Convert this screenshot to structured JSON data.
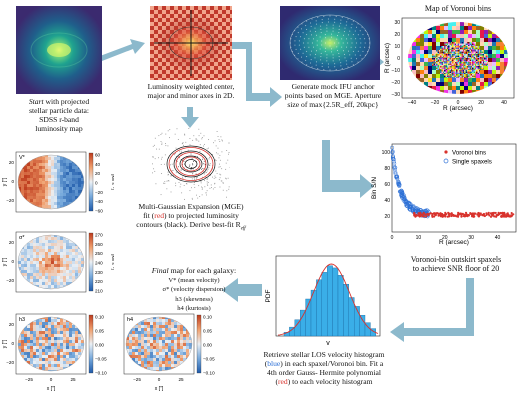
{
  "panels": {
    "sdss": {
      "caption_lines": [
        "Start with projected",
        "stellar particle data:",
        "SDSS r-band",
        "luminosity map"
      ],
      "start_word": "Start"
    },
    "luminosity": {
      "caption_lines": [
        "Luminosity weighted center,",
        "major and minor axes in 2D."
      ]
    },
    "mge": {
      "caption_title": "Multi-Gaussian Expansion (MGE)",
      "caption_fit_pre": "fit (",
      "caption_fit_red": "red",
      "caption_fit_post": ") to projected luminosity",
      "caption_line3": "contours (black). Derive best-fit R",
      "caption_sub": "eff"
    },
    "anchor": {
      "caption_lines": [
        "Generate mock IFU anchor",
        "points based on MGE. Aperture",
        "size of max{2.5R_eff, 20kpc}"
      ]
    },
    "voronoi_map": {
      "title": "Map of Voronoi bins",
      "xlabel": "R (arcsec)",
      "ylabel": "R (arcsec)",
      "xticks": [
        "−40",
        "−20",
        "0",
        "20",
        "40"
      ],
      "yticks": [
        "30",
        "20",
        "10",
        "0",
        "−10",
        "−20",
        "−30"
      ]
    },
    "snr_plot": {
      "ylabel": "Bin S/N",
      "xlabel": "R (arcsec)",
      "xticks": [
        "0",
        "10",
        "20",
        "30",
        "40"
      ],
      "yticks": [
        "100",
        "80",
        "60",
        "40",
        "20"
      ],
      "legend": [
        "Voronoi bins",
        "Single spaxels"
      ],
      "caption_lines": [
        "Voronoi-bin outskirt spaxels",
        "to achieve SNR floor of 20"
      ]
    },
    "histogram": {
      "ylabel": "PDF",
      "xlabel": "v",
      "caption_line1": "Retrieve stellar LOS velocity histogram",
      "caption_line2_pre": "(",
      "caption_line2_blue": "blue",
      "caption_line2_post": ") in each spaxel/Voronoi bin. Fit a",
      "caption_line3": "4th order Gauss- Hermite polynomial",
      "caption_line4_pre": "(",
      "caption_line4_red": "red",
      "caption_line4_post": ") to each velocity histogram"
    },
    "final": {
      "title_word": "Final",
      "title_rest": " map for each galaxy:",
      "items": [
        "V* (mean velocity)",
        "σ* (velocity dispersion)",
        "h3 (skewness)",
        "h4 (kurtosis)"
      ]
    }
  },
  "maps": [
    {
      "label": "V*",
      "unit": "[km s⁻¹]",
      "cbar": [
        "60",
        "40",
        "20",
        "0",
        "−20",
        "−40",
        "−60"
      ],
      "yticks": [
        "20",
        "0",
        "−20"
      ],
      "xticks": []
    },
    {
      "label": "σ*",
      "unit": "[km s⁻¹]",
      "cbar": [
        "270",
        "260",
        "250",
        "240",
        "230",
        "220",
        "210"
      ],
      "yticks": [
        "20",
        "0",
        "−20"
      ],
      "xticks": []
    },
    {
      "label": "h3",
      "cbar": [
        "0.10",
        "0.05",
        "0.00",
        "−0.05",
        "−0.10"
      ],
      "yticks": [
        "20",
        "0",
        "−20"
      ],
      "xticks": [
        "−25",
        "0",
        "25"
      ]
    },
    {
      "label": "h4",
      "cbar": [
        "0.10",
        "0.05",
        "0.00",
        "−0.05",
        "−0.10"
      ],
      "xticks": [
        "−25",
        "0",
        "25"
      ]
    }
  ],
  "map_axis": {
    "xlabel": "x [″]",
    "ylabel": "y [″]"
  },
  "colors": {
    "arrow": "#8cb9cc",
    "red": "#d8322c",
    "blue": "#2b6fd6",
    "hist": "#3aaee8"
  }
}
